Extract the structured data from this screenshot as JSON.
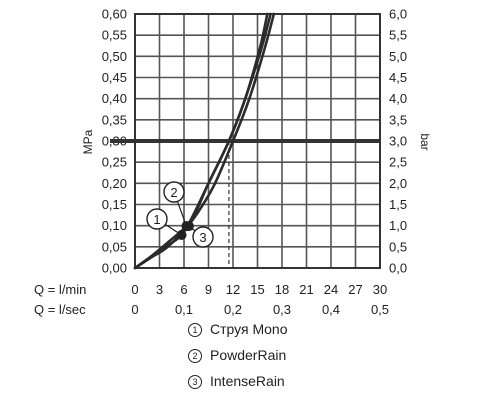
{
  "chart_data": {
    "type": "line",
    "ylabel_left": "MPa",
    "ylabel_right": "bar",
    "ylim": [
      0,
      0.6
    ],
    "y_ticks_left": [
      "0,00",
      "0,05",
      "0,10",
      "0,15",
      "0,20",
      "0,25",
      "0,30",
      "0,35",
      "0,40",
      "0,45",
      "0,50",
      "0,55",
      "0,60"
    ],
    "y_ticks_right": [
      "0,0",
      "0,5",
      "1,0",
      "1,5",
      "2,0",
      "2,5",
      "3,0",
      "3,5",
      "4,0",
      "4,5",
      "5,0",
      "5,5",
      "6,0"
    ],
    "xlim": [
      0,
      30
    ],
    "x_label_lmin": "Q = l/min",
    "x_ticks_lmin": [
      "0",
      "3",
      "6",
      "9",
      "12",
      "15",
      "18",
      "21",
      "24",
      "27",
      "30"
    ],
    "x_label_lsec": "Q = l/sec",
    "x_ticks_lsec": [
      "0",
      "0,1",
      "0,2",
      "0,3",
      "0,4",
      "0,5"
    ],
    "reference": {
      "pressure_mpa": 0.3,
      "flow_lmin": 11.5
    },
    "series": [
      {
        "name": "Струя Mono",
        "marker": "1",
        "x": [
          0,
          2,
          4,
          5.7,
          7,
          9,
          11.5,
          13.5,
          15.5,
          16.6
        ],
        "y": [
          0,
          0.027,
          0.053,
          0.078,
          0.12,
          0.2,
          0.3,
          0.4,
          0.52,
          0.6
        ]
      },
      {
        "name": "PowderRain",
        "marker": "2",
        "x": [
          0,
          2,
          4,
          6.3,
          7.5,
          9,
          11.5,
          13.5,
          15.3,
          16.2
        ],
        "y": [
          0,
          0.028,
          0.06,
          0.099,
          0.135,
          0.2,
          0.3,
          0.4,
          0.52,
          0.6
        ]
      },
      {
        "name": "IntenseRain",
        "marker": "3",
        "x": [
          0,
          2,
          4,
          6.5,
          8,
          9.8,
          12,
          14,
          15.9,
          17.0
        ],
        "y": [
          0,
          0.025,
          0.05,
          0.1,
          0.14,
          0.2,
          0.3,
          0.4,
          0.52,
          0.6
        ]
      }
    ]
  },
  "legend": [
    {
      "marker": "1",
      "label": "Струя Mono"
    },
    {
      "marker": "2",
      "label": "PowderRain"
    },
    {
      "marker": "3",
      "label": "IntenseRain"
    }
  ]
}
